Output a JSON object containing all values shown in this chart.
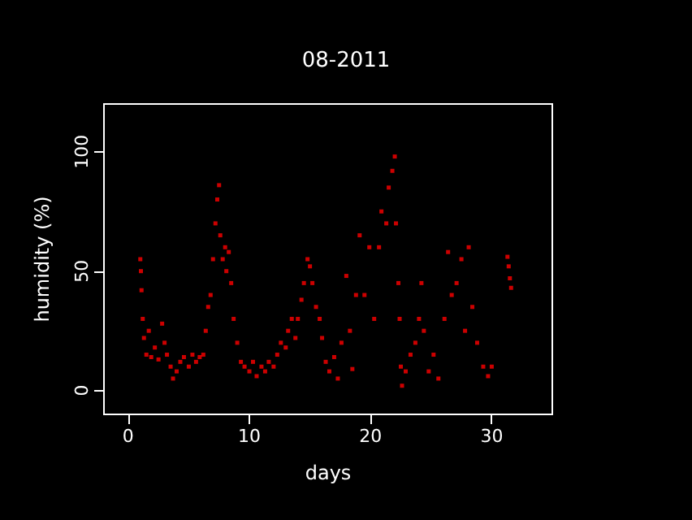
{
  "chart_data": {
    "type": "scatter",
    "title": "08-2011",
    "xlabel": "days",
    "ylabel": "humidity (%)",
    "x": [
      1.0,
      1.05,
      1.1,
      1.2,
      1.3,
      1.5,
      1.7,
      1.9,
      2.2,
      2.5,
      2.8,
      3.0,
      3.2,
      3.5,
      3.7,
      4.0,
      4.3,
      4.6,
      5.0,
      5.3,
      5.6,
      5.9,
      6.2,
      6.4,
      6.6,
      6.8,
      7.0,
      7.2,
      7.35,
      7.5,
      7.6,
      7.8,
      8.0,
      8.1,
      8.3,
      8.5,
      8.7,
      9.0,
      9.3,
      9.6,
      10.0,
      10.3,
      10.6,
      11.0,
      11.3,
      11.6,
      12.0,
      12.3,
      12.6,
      13.0,
      13.2,
      13.5,
      13.8,
      14.0,
      14.3,
      14.5,
      14.8,
      15.0,
      15.2,
      15.5,
      15.8,
      16.0,
      16.3,
      16.6,
      17.0,
      17.3,
      17.6,
      18.0,
      18.3,
      18.5,
      18.8,
      19.1,
      19.5,
      19.9,
      20.3,
      20.7,
      20.9,
      21.3,
      21.5,
      21.8,
      22.0,
      22.1,
      22.3,
      22.4,
      22.5,
      22.6,
      22.9,
      23.3,
      23.7,
      24.0,
      24.2,
      24.4,
      24.8,
      25.2,
      25.6,
      26.1,
      26.4,
      26.7,
      27.1,
      27.5,
      27.8,
      28.1,
      28.4,
      28.8,
      29.3,
      29.7,
      30.0,
      31.3,
      31.4,
      31.5,
      31.6
    ],
    "values": [
      55,
      50,
      42,
      30,
      22,
      15,
      25,
      14,
      18,
      13,
      28,
      20,
      15,
      10,
      5,
      8,
      12,
      14,
      10,
      15,
      12,
      14,
      15,
      25,
      35,
      40,
      55,
      70,
      80,
      86,
      65,
      55,
      60,
      50,
      58,
      45,
      30,
      20,
      12,
      10,
      8,
      12,
      6,
      10,
      8,
      12,
      10,
      15,
      20,
      18,
      25,
      30,
      22,
      30,
      38,
      45,
      55,
      52,
      45,
      35,
      30,
      22,
      12,
      8,
      14,
      5,
      20,
      48,
      25,
      9,
      40,
      65,
      40,
      60,
      30,
      60,
      75,
      70,
      85,
      92,
      98,
      70,
      45,
      30,
      10,
      2,
      8,
      15,
      20,
      30,
      45,
      25,
      8,
      15,
      5,
      30,
      58,
      40,
      45,
      55,
      25,
      60,
      35,
      20,
      10,
      6,
      10,
      56,
      52,
      47,
      43
    ],
    "color": "#ff0000",
    "marker": "square",
    "xlim": [
      -2,
      35
    ],
    "ylim": [
      -10,
      120
    ],
    "xticks": [
      0,
      10,
      20,
      30
    ],
    "yticks": [
      0,
      50,
      100
    ],
    "grid": false
  }
}
